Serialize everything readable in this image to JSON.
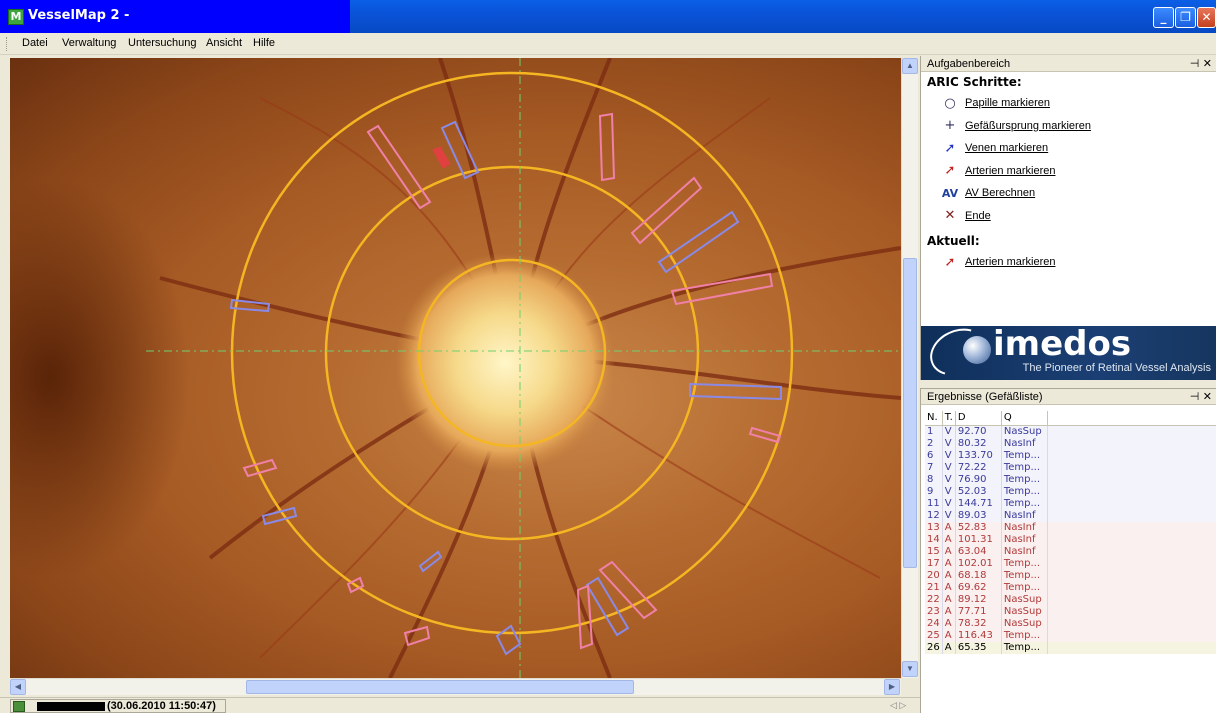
{
  "window": {
    "title": "VesselMap 2 -",
    "icon": "vesselmap-app-icon",
    "controls": [
      "minimize-icon",
      "restore-icon",
      "close-icon"
    ]
  },
  "menu": {
    "items": [
      "Datei",
      "Verwaltung",
      "Untersuchung",
      "Ansicht",
      "Hilfe"
    ]
  },
  "statusbar": {
    "timestamp": "(30.06.2010 11:50:47)",
    "nav": "◁ ▷"
  },
  "tasks": {
    "header": "Aufgabenbereich",
    "section_title": "ARIC Schritte:",
    "items": [
      {
        "label": "Papille markieren",
        "icon": "circle-icon",
        "glyph": "○",
        "color": "#303060"
      },
      {
        "label": "Gefäßursprung markieren",
        "icon": "crosshair-icon",
        "glyph": "+",
        "color": "#303060"
      },
      {
        "label": "Venen markieren",
        "icon": "vein-brush-icon",
        "glyph": "➚",
        "color": "#2030c0"
      },
      {
        "label": "Arterien markieren",
        "icon": "artery-brush-icon",
        "glyph": "➚",
        "color": "#c02020"
      },
      {
        "label": "AV Berechnen",
        "icon": "av-icon",
        "glyph": "AV",
        "color": "#2040a0"
      },
      {
        "label": "Ende",
        "icon": "cross-icon",
        "glyph": "✕",
        "color": "#802020"
      }
    ],
    "current_title": "Aktuell:",
    "current": {
      "label": "Arterien markieren",
      "icon": "artery-brush-icon",
      "glyph": "➚",
      "color": "#c02020"
    }
  },
  "logo": {
    "name": "imedos",
    "tagline": "The Pioneer of Retinal Vessel Analysis"
  },
  "results": {
    "header": "Ergebnisse (Gefäßliste)",
    "columns": [
      "N.",
      "T.",
      "D",
      "Q"
    ],
    "rows": [
      [
        "1",
        "V",
        "92.70",
        "NasSup"
      ],
      [
        "2",
        "V",
        "80.32",
        "NasInf"
      ],
      [
        "6",
        "V",
        "133.70",
        "Temp..."
      ],
      [
        "7",
        "V",
        "72.22",
        "Temp..."
      ],
      [
        "8",
        "V",
        "76.90",
        "Temp..."
      ],
      [
        "9",
        "V",
        "52.03",
        "Temp..."
      ],
      [
        "11",
        "V",
        "144.71",
        "Temp..."
      ],
      [
        "12",
        "V",
        "89.03",
        "NasInf"
      ],
      [
        "13",
        "A",
        "52.83",
        "NasInf"
      ],
      [
        "14",
        "A",
        "101.31",
        "NasInf"
      ],
      [
        "15",
        "A",
        "63.04",
        "NasInf"
      ],
      [
        "17",
        "A",
        "102.01",
        "Temp..."
      ],
      [
        "20",
        "A",
        "68.18",
        "Temp..."
      ],
      [
        "21",
        "A",
        "69.62",
        "Temp..."
      ],
      [
        "22",
        "A",
        "89.12",
        "NasSup"
      ],
      [
        "23",
        "A",
        "77.71",
        "NasSup"
      ],
      [
        "24",
        "A",
        "78.32",
        "NasSup"
      ],
      [
        "25",
        "A",
        "116.43",
        "Temp..."
      ],
      [
        "26",
        "A",
        "65.35",
        "Temp..."
      ]
    ],
    "selected_row": "26"
  },
  "colors": {
    "ring": "#f5b622",
    "vein_marker": "#8a8ae6",
    "artery_marker": "#f080a8",
    "guide_line": "#6fd06f"
  }
}
